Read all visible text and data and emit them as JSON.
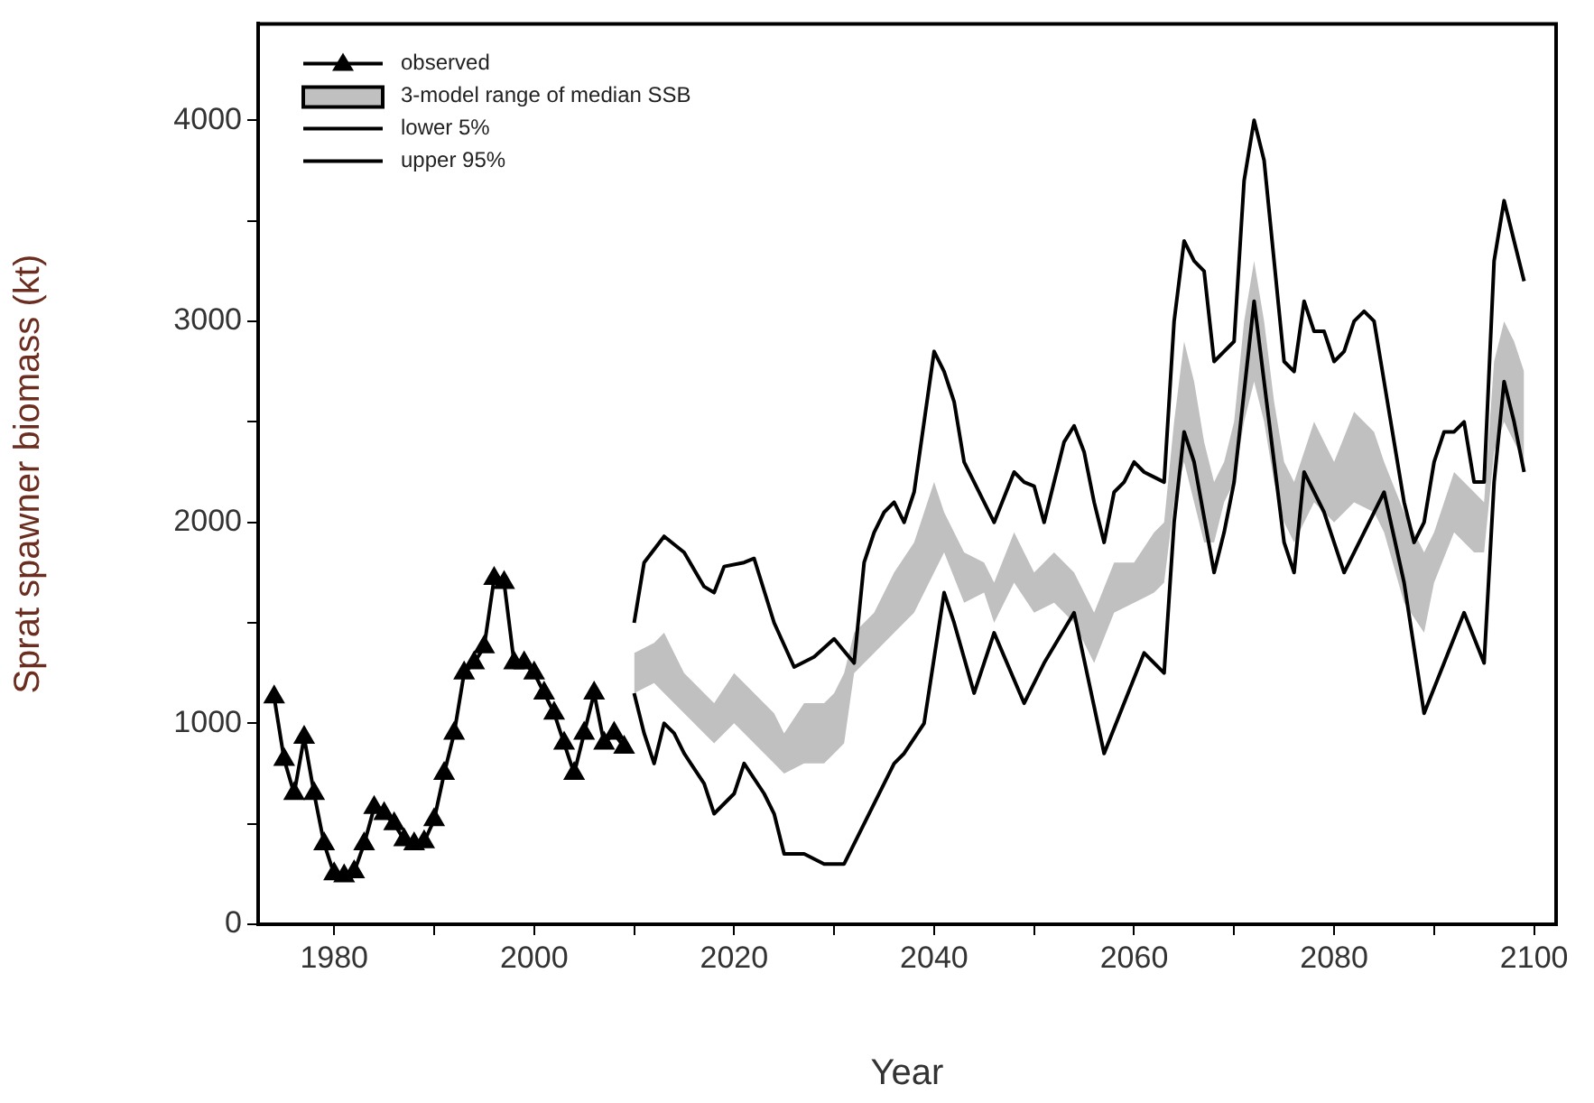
{
  "chart_data": {
    "type": "line",
    "xlabel": "Year",
    "ylabel": "Sprat spawner biomass (kt)",
    "xlim": [
      1972.4,
      2102.2
    ],
    "ylim": [
      0,
      4480
    ],
    "xticks": [
      1980,
      {
        "value": 1990,
        "label": null
      },
      2000,
      {
        "value": 2010,
        "label": null
      },
      2020,
      {
        "value": 2030,
        "label": null
      },
      2040,
      {
        "value": 2050,
        "label": null
      },
      2060,
      {
        "value": 2070,
        "label": null
      },
      2080,
      {
        "value": 2090,
        "label": null
      },
      2100
    ],
    "yticks": [
      0,
      {
        "value": 500,
        "label": null
      },
      1000,
      {
        "value": 1500,
        "label": null
      },
      2000,
      {
        "value": 2500,
        "label": null
      },
      3000,
      {
        "value": 3500,
        "label": null
      },
      4000
    ],
    "grid": false,
    "legend": "top left",
    "line_style": "solid",
    "series": [
      {
        "name": "observed",
        "type": "line",
        "marker": "triangle",
        "color": "#000000",
        "x": [
          1974,
          1975,
          1976,
          1977,
          1978,
          1979,
          1980,
          1981,
          1982,
          1983,
          1984,
          1985,
          1986,
          1987,
          1988,
          1989,
          1990,
          1991,
          1992,
          1993,
          1994,
          1995,
          1996,
          1997,
          1998,
          1999,
          2000,
          2001,
          2002,
          2003,
          2004,
          2005,
          2006,
          2007,
          2008,
          2009
        ],
        "values": [
          1130,
          820,
          650,
          930,
          650,
          400,
          250,
          240,
          260,
          400,
          580,
          550,
          500,
          420,
          400,
          410,
          520,
          750,
          950,
          1250,
          1300,
          1380,
          1720,
          1700,
          1300,
          1300,
          1250,
          1150,
          1050,
          900,
          750,
          950,
          1150,
          900,
          950,
          880
        ]
      },
      {
        "name": "3-model range of median SSB",
        "type": "area",
        "color": "#c0c0c0",
        "x": [
          2010,
          2012,
          2013,
          2015,
          2017,
          2018,
          2020,
          2022,
          2024,
          2025,
          2027,
          2029,
          2030,
          2031,
          2032,
          2034,
          2036,
          2038,
          2040,
          2041,
          2043,
          2045,
          2046,
          2048,
          2050,
          2052,
          2054,
          2056,
          2058,
          2060,
          2062,
          2063,
          2064,
          2065,
          2066,
          2067,
          2068,
          2069,
          2070,
          2071,
          2072,
          2073,
          2074,
          2075,
          2076,
          2078,
          2080,
          2082,
          2084,
          2085,
          2087,
          2089,
          2090,
          2092,
          2094,
          2095,
          2096,
          2097,
          2098,
          2099
        ],
        "values": [
          null,
          null,
          null,
          null,
          null,
          null,
          null,
          null,
          null,
          null,
          null,
          null,
          null,
          null,
          null,
          null,
          null,
          null,
          null,
          null,
          null,
          null,
          null,
          null,
          null,
          null,
          null,
          null,
          null,
          null,
          null,
          null,
          null,
          null,
          null,
          null,
          null,
          null,
          null,
          null,
          null,
          null,
          null,
          null,
          null,
          null,
          null,
          null,
          null,
          null,
          null,
          null,
          null,
          null,
          null,
          null,
          null,
          null,
          null,
          null
        ],
        "lower": [
          1150,
          1200,
          1150,
          1050,
          950,
          900,
          1000,
          900,
          800,
          750,
          800,
          800,
          850,
          900,
          1250,
          1350,
          1450,
          1550,
          1750,
          1850,
          1600,
          1650,
          1500,
          1700,
          1550,
          1600,
          1500,
          1300,
          1550,
          1600,
          1650,
          1700,
          2100,
          2300,
          2100,
          1900,
          1900,
          2100,
          2200,
          2500,
          2700,
          2500,
          2200,
          2000,
          1900,
          2100,
          2000,
          2100,
          2050,
          1950,
          1600,
          1450,
          1700,
          1950,
          1850,
          1850,
          2350,
          2500,
          2400,
          2300
        ],
        "upper": [
          1350,
          1400,
          1450,
          1250,
          1150,
          1100,
          1250,
          1150,
          1050,
          950,
          1100,
          1100,
          1150,
          1250,
          1450,
          1550,
          1750,
          1900,
          2200,
          2050,
          1850,
          1800,
          1700,
          1950,
          1750,
          1850,
          1750,
          1550,
          1800,
          1800,
          1950,
          2000,
          2500,
          2900,
          2700,
          2400,
          2200,
          2300,
          2500,
          3000,
          3300,
          3000,
          2600,
          2300,
          2200,
          2500,
          2300,
          2550,
          2450,
          2300,
          2050,
          1850,
          1950,
          2250,
          2150,
          2100,
          2800,
          3000,
          2900,
          2750
        ]
      },
      {
        "name": "lower 5%",
        "type": "line",
        "marker": "none",
        "color": "#000000",
        "x": [
          2010,
          2011,
          2012,
          2013,
          2014,
          2015,
          2017,
          2018,
          2020,
          2021,
          2023,
          2024,
          2025,
          2027,
          2029,
          2030,
          2031,
          2032,
          2033,
          2034,
          2035,
          2036,
          2037,
          2039,
          2041,
          2042,
          2044,
          2046,
          2049,
          2051,
          2054,
          2057,
          2059,
          2061,
          2063,
          2064,
          2065,
          2066,
          2068,
          2069,
          2070,
          2072,
          2073,
          2074,
          2075,
          2076,
          2077,
          2079,
          2081,
          2083,
          2085,
          2087,
          2089,
          2091,
          2093,
          2095,
          2096,
          2097,
          2098,
          2099
        ],
        "values": [
          1150,
          950,
          800,
          1000,
          950,
          850,
          700,
          550,
          650,
          800,
          650,
          550,
          350,
          350,
          300,
          300,
          300,
          400,
          500,
          600,
          700,
          800,
          850,
          1000,
          1650,
          1500,
          1150,
          1450,
          1100,
          1300,
          1550,
          850,
          1100,
          1350,
          1250,
          2000,
          2450,
          2300,
          1750,
          1950,
          2200,
          3100,
          2700,
          2300,
          1900,
          1750,
          2250,
          2050,
          1750,
          1950,
          2150,
          1700,
          1050,
          1300,
          1550,
          1300,
          2200,
          2700,
          2500,
          2250
        ]
      },
      {
        "name": "upper 95%",
        "type": "line",
        "marker": "none",
        "color": "#000000",
        "x": [
          2010,
          2011,
          2013,
          2015,
          2017,
          2018,
          2019,
          2021,
          2022,
          2024,
          2026,
          2028,
          2030,
          2031,
          2032,
          2033,
          2034,
          2035,
          2036,
          2037,
          2038,
          2039,
          2040,
          2041,
          2042,
          2043,
          2044,
          2046,
          2048,
          2049,
          2050,
          2051,
          2052,
          2053,
          2054,
          2055,
          2056,
          2057,
          2058,
          2059,
          2060,
          2061,
          2063,
          2064,
          2065,
          2066,
          2067,
          2068,
          2069,
          2070,
          2071,
          2072,
          2073,
          2074,
          2075,
          2076,
          2077,
          2078,
          2079,
          2080,
          2081,
          2082,
          2083,
          2084,
          2085,
          2086,
          2087,
          2088,
          2089,
          2090,
          2091,
          2092,
          2093,
          2094,
          2095,
          2096,
          2097,
          2098,
          2099
        ],
        "values": [
          1500,
          1800,
          1930,
          1850,
          1680,
          1650,
          1780,
          1800,
          1820,
          1500,
          1280,
          1330,
          1420,
          1360,
          1300,
          1800,
          1950,
          2050,
          2100,
          2000,
          2150,
          2500,
          2850,
          2750,
          2600,
          2300,
          2200,
          2000,
          2250,
          2200,
          2180,
          2000,
          2200,
          2400,
          2480,
          2350,
          2100,
          1900,
          2150,
          2200,
          2300,
          2250,
          2200,
          3000,
          3400,
          3300,
          3250,
          2800,
          2850,
          2900,
          3700,
          4000,
          3800,
          3300,
          2800,
          2750,
          3100,
          2950,
          2950,
          2800,
          2850,
          3000,
          3050,
          3000,
          2700,
          2400,
          2100,
          1900,
          2000,
          2300,
          2450,
          2450,
          2500,
          2200,
          2200,
          3300,
          3600,
          3400,
          3200
        ]
      }
    ]
  }
}
